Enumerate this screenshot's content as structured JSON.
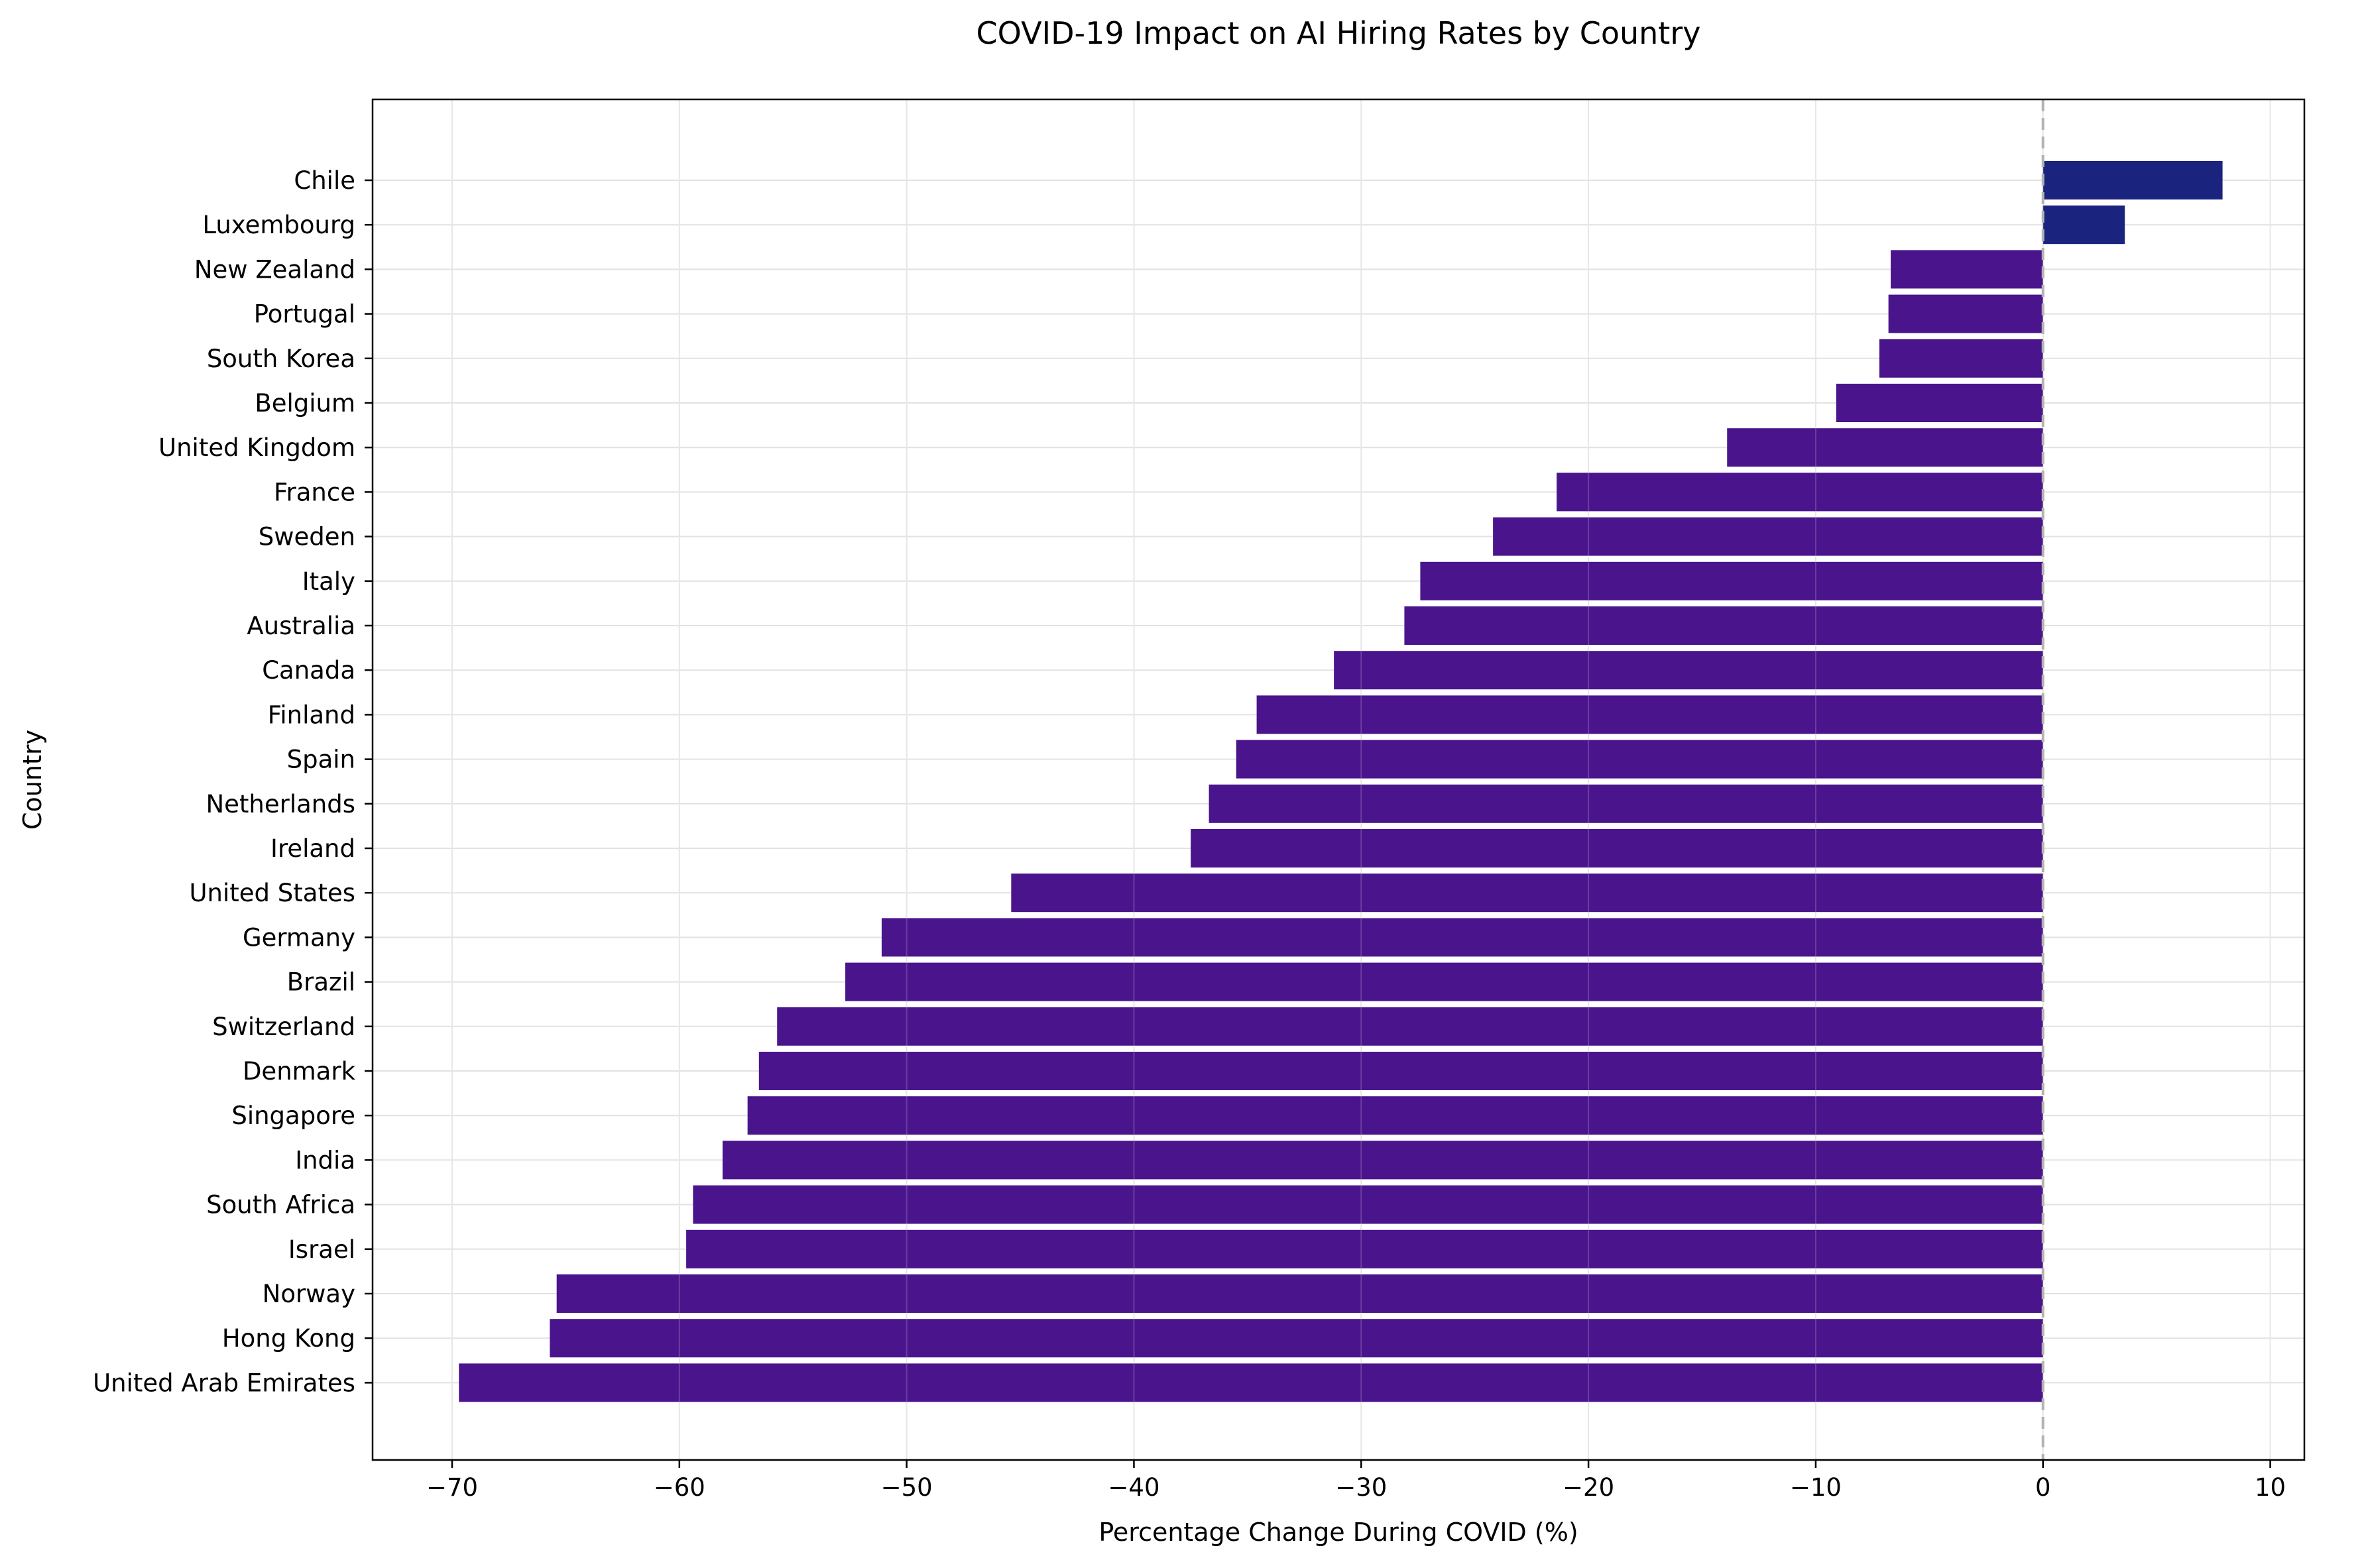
{
  "chart_data": {
    "type": "bar",
    "orientation": "horizontal",
    "title": "COVID-19 Impact on AI Hiring Rates by Country",
    "xlabel": "Percentage Change During COVID (%)",
    "ylabel": "Country",
    "xlim": [
      -73.5,
      11.5
    ],
    "x_ticks": [
      -70,
      -60,
      -50,
      -40,
      -30,
      -20,
      -10,
      0,
      10
    ],
    "x_tick_labels": [
      "−70",
      "−60",
      "−50",
      "−40",
      "−30",
      "−20",
      "−10",
      "0",
      "10"
    ],
    "grid": true,
    "zero_line": "dashed",
    "categories": [
      "Chile",
      "Luxembourg",
      "New Zealand",
      "Portugal",
      "South Korea",
      "Belgium",
      "United Kingdom",
      "France",
      "Sweden",
      "Italy",
      "Australia",
      "Canada",
      "Finland",
      "Spain",
      "Netherlands",
      "Ireland",
      "United States",
      "Germany",
      "Brazil",
      "Switzerland",
      "Denmark",
      "Singapore",
      "India",
      "South Africa",
      "Israel",
      "Norway",
      "Hong Kong",
      "United Arab Emirates"
    ],
    "values": [
      7.9,
      3.6,
      -6.7,
      -6.8,
      -7.2,
      -9.1,
      -13.9,
      -21.4,
      -24.2,
      -27.4,
      -28.1,
      -31.2,
      -34.6,
      -35.5,
      -36.7,
      -37.5,
      -45.4,
      -51.1,
      -52.7,
      -55.7,
      -56.5,
      -57.0,
      -58.1,
      -59.4,
      -59.7,
      -65.4,
      -65.7,
      -69.7
    ],
    "colors": {
      "positive": "#1a237e",
      "negative": "#4a148c",
      "grid": "#e2e2e2",
      "zero_line": "#b3b3b3"
    }
  }
}
